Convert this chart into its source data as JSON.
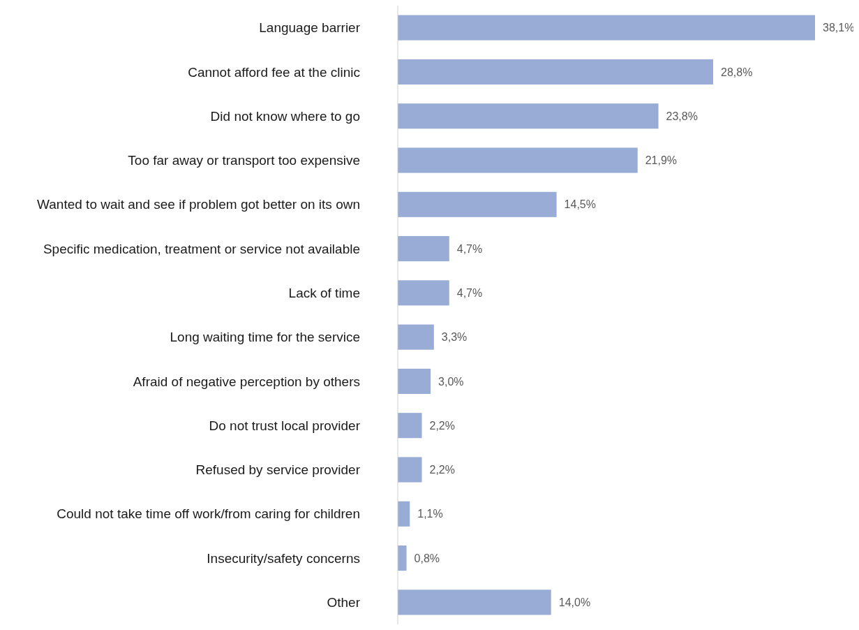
{
  "chart_data": {
    "type": "bar",
    "orientation": "horizontal",
    "color": "#98acd6",
    "categories": [
      "Language barrier",
      "Cannot afford fee at the clinic",
      "Did not know where to go",
      "Too far away or transport too expensive",
      "Wanted to wait and see if problem got better on its own",
      "Specific medication, treatment or service not available",
      "Lack of time",
      "Long waiting time for the service",
      "Afraid of negative perception by others",
      "Do not trust local provider",
      "Refused by service provider",
      "Could not take time off work/from caring for children",
      "Insecurity/safety concerns",
      "Other"
    ],
    "values": [
      38.1,
      28.8,
      23.8,
      21.9,
      14.5,
      4.7,
      4.7,
      3.3,
      3.0,
      2.2,
      2.2,
      1.1,
      0.8,
      14.0
    ],
    "value_labels": [
      "38,1%",
      "28,8%",
      "23,8%",
      "21,9%",
      "14,5%",
      "4,7%",
      "4,7%",
      "3,3%",
      "3,0%",
      "2,2%",
      "2,2%",
      "1,1%",
      "0,8%",
      "14,0%"
    ]
  }
}
